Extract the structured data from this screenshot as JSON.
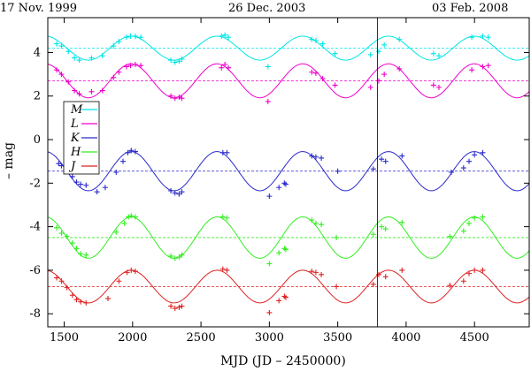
{
  "chart_data": {
    "type": "scatter",
    "title": "",
    "xlabel": "MJD (JD – 2450000)",
    "ylabel": "– mag",
    "xlim": [
      1380,
      4900
    ],
    "ylim": [
      -8.6,
      5.6
    ],
    "x_ticks": [
      1500,
      2000,
      2500,
      3000,
      3500,
      4000,
      4500
    ],
    "y_ticks": [
      4,
      2,
      0,
      -2,
      -4,
      -6,
      -8
    ],
    "x_tick_labels": [
      "1500",
      "2000",
      "2500",
      "3000",
      "3500",
      "4000",
      "4500"
    ],
    "y_tick_labels": [
      "4",
      "2",
      "0",
      "-2",
      "-4",
      "-6",
      "-8"
    ],
    "top_dates": [
      {
        "label": "17 Nov. 1999",
        "x": 1500
      },
      {
        "label": "26 Dec. 2003",
        "x": 2995
      },
      {
        "label": "03 Feb. 2008",
        "x": 4500
      }
    ],
    "vertical_marker_x": 3790,
    "period_days": 627,
    "legend": [
      "M",
      "L",
      "K",
      "H",
      "J"
    ],
    "series": [
      {
        "name": "M",
        "color": "#00e5e5",
        "mean": 4.2,
        "amplitude": 0.55,
        "peak_x": 1990,
        "points": [
          [
            1445,
            4.4
          ],
          [
            1480,
            4.3
          ],
          [
            1530,
            4.05
          ],
          [
            1575,
            3.75
          ],
          [
            1610,
            3.65
          ],
          [
            1700,
            3.75
          ],
          [
            1780,
            3.85
          ],
          [
            1860,
            4.3
          ],
          [
            1900,
            4.5
          ],
          [
            1955,
            4.7
          ],
          [
            1985,
            4.75
          ],
          [
            2020,
            4.75
          ],
          [
            2060,
            4.7
          ],
          [
            2280,
            3.65
          ],
          [
            2310,
            3.55
          ],
          [
            2340,
            3.6
          ],
          [
            2360,
            3.7
          ],
          [
            2650,
            4.75
          ],
          [
            2675,
            4.8
          ],
          [
            2700,
            4.7
          ],
          [
            2990,
            3.35
          ],
          [
            3310,
            4.6
          ],
          [
            3340,
            4.55
          ],
          [
            3390,
            4.4
          ],
          [
            3480,
            3.95
          ],
          [
            3740,
            3.9
          ],
          [
            3800,
            4.05
          ],
          [
            3840,
            4.35
          ],
          [
            3950,
            4.6
          ],
          [
            4200,
            3.95
          ],
          [
            4240,
            3.85
          ],
          [
            4480,
            4.7
          ],
          [
            4560,
            4.75
          ],
          [
            4600,
            4.7
          ]
        ]
      },
      {
        "name": "L",
        "color": "#ee00cc",
        "mean": 2.7,
        "amplitude": 0.78,
        "peak_x": 1990,
        "points": [
          [
            1445,
            3.2
          ],
          [
            1480,
            3.0
          ],
          [
            1530,
            2.65
          ],
          [
            1575,
            2.25
          ],
          [
            1610,
            2.1
          ],
          [
            1700,
            2.2
          ],
          [
            1780,
            2.25
          ],
          [
            1860,
            2.85
          ],
          [
            1900,
            3.1
          ],
          [
            1955,
            3.35
          ],
          [
            1985,
            3.4
          ],
          [
            2020,
            3.45
          ],
          [
            2060,
            3.4
          ],
          [
            2280,
            2.0
          ],
          [
            2310,
            1.9
          ],
          [
            2340,
            1.95
          ],
          [
            2360,
            1.9
          ],
          [
            2650,
            3.3
          ],
          [
            2675,
            3.45
          ],
          [
            2700,
            3.3
          ],
          [
            2990,
            1.75
          ],
          [
            3310,
            3.1
          ],
          [
            3340,
            3.05
          ],
          [
            3390,
            2.8
          ],
          [
            3480,
            2.5
          ],
          [
            3740,
            2.4
          ],
          [
            3800,
            2.7
          ],
          [
            3840,
            3.0
          ],
          [
            3950,
            3.25
          ],
          [
            4200,
            2.5
          ],
          [
            4240,
            2.4
          ],
          [
            4480,
            3.2
          ],
          [
            4560,
            3.35
          ],
          [
            4600,
            3.4
          ]
        ]
      },
      {
        "name": "K",
        "color": "#2a2acc",
        "mean": -1.45,
        "amplitude": 0.9,
        "peak_x": 1990,
        "points": [
          [
            1460,
            -1.1
          ],
          [
            1480,
            -1.2
          ],
          [
            1520,
            -1.45
          ],
          [
            1560,
            -1.7
          ],
          [
            1590,
            -1.95
          ],
          [
            1620,
            -2.05
          ],
          [
            1660,
            -2.1
          ],
          [
            1740,
            -2.4
          ],
          [
            1800,
            -2.2
          ],
          [
            1880,
            -1.5
          ],
          [
            1930,
            -1.0
          ],
          [
            1965,
            -0.6
          ],
          [
            1990,
            -0.5
          ],
          [
            2020,
            -0.55
          ],
          [
            2280,
            -2.35
          ],
          [
            2310,
            -2.45
          ],
          [
            2340,
            -2.5
          ],
          [
            2360,
            -2.4
          ],
          [
            2660,
            -0.6
          ],
          [
            2690,
            -0.6
          ],
          [
            3000,
            -2.6
          ],
          [
            3070,
            -2.2
          ],
          [
            3110,
            -2.0
          ],
          [
            3120,
            -2.05
          ],
          [
            3310,
            -0.75
          ],
          [
            3340,
            -0.8
          ],
          [
            3380,
            -0.85
          ],
          [
            3500,
            -1.45
          ],
          [
            3760,
            -1.35
          ],
          [
            3820,
            -0.9
          ],
          [
            3850,
            -1.0
          ],
          [
            3970,
            -0.75
          ],
          [
            4330,
            -1.5
          ],
          [
            4420,
            -1.3
          ],
          [
            4460,
            -1.0
          ],
          [
            4500,
            -0.7
          ],
          [
            4560,
            -0.6
          ]
        ]
      },
      {
        "name": "H",
        "color": "#33ee22",
        "mean": -4.5,
        "amplitude": 0.95,
        "peak_x": 1990,
        "points": [
          [
            1445,
            -4.05
          ],
          [
            1480,
            -4.3
          ],
          [
            1520,
            -4.45
          ],
          [
            1560,
            -4.75
          ],
          [
            1590,
            -5.0
          ],
          [
            1620,
            -5.25
          ],
          [
            1660,
            -5.3
          ],
          [
            1880,
            -4.25
          ],
          [
            1940,
            -3.85
          ],
          [
            1970,
            -3.55
          ],
          [
            1990,
            -3.5
          ],
          [
            2020,
            -3.55
          ],
          [
            2280,
            -5.35
          ],
          [
            2310,
            -5.45
          ],
          [
            2340,
            -5.4
          ],
          [
            2360,
            -5.3
          ],
          [
            2660,
            -3.55
          ],
          [
            2690,
            -3.6
          ],
          [
            3000,
            -5.7
          ],
          [
            3070,
            -5.2
          ],
          [
            3110,
            -5.0
          ],
          [
            3120,
            -5.05
          ],
          [
            3310,
            -3.7
          ],
          [
            3340,
            -3.85
          ],
          [
            3380,
            -3.9
          ],
          [
            3490,
            -4.5
          ],
          [
            3760,
            -4.35
          ],
          [
            3820,
            -4.0
          ],
          [
            3850,
            -4.1
          ],
          [
            3970,
            -3.8
          ],
          [
            4320,
            -4.45
          ],
          [
            4420,
            -4.2
          ],
          [
            4460,
            -3.85
          ],
          [
            4500,
            -3.6
          ],
          [
            4560,
            -3.55
          ]
        ]
      },
      {
        "name": "J",
        "color": "#dd2222",
        "mean": -6.75,
        "amplitude": 0.75,
        "peak_x": 1990,
        "points": [
          [
            1445,
            -6.35
          ],
          [
            1480,
            -6.5
          ],
          [
            1520,
            -6.8
          ],
          [
            1560,
            -7.15
          ],
          [
            1590,
            -7.35
          ],
          [
            1620,
            -7.45
          ],
          [
            1660,
            -7.5
          ],
          [
            1820,
            -7.3
          ],
          [
            1900,
            -6.5
          ],
          [
            1960,
            -6.1
          ],
          [
            1990,
            -6.0
          ],
          [
            2020,
            -6.05
          ],
          [
            2280,
            -7.65
          ],
          [
            2310,
            -7.75
          ],
          [
            2340,
            -7.7
          ],
          [
            2360,
            -7.65
          ],
          [
            2660,
            -5.95
          ],
          [
            2690,
            -6.0
          ],
          [
            3000,
            -7.95
          ],
          [
            3070,
            -7.4
          ],
          [
            3110,
            -7.2
          ],
          [
            3120,
            -7.25
          ],
          [
            3310,
            -6.05
          ],
          [
            3340,
            -6.1
          ],
          [
            3380,
            -6.2
          ],
          [
            3490,
            -6.75
          ],
          [
            3760,
            -6.65
          ],
          [
            3800,
            -6.2
          ],
          [
            3850,
            -6.3
          ],
          [
            3970,
            -6.0
          ],
          [
            4320,
            -6.7
          ],
          [
            4420,
            -6.5
          ],
          [
            4460,
            -6.15
          ],
          [
            4500,
            -6.0
          ],
          [
            4560,
            -6.0
          ]
        ]
      }
    ]
  }
}
